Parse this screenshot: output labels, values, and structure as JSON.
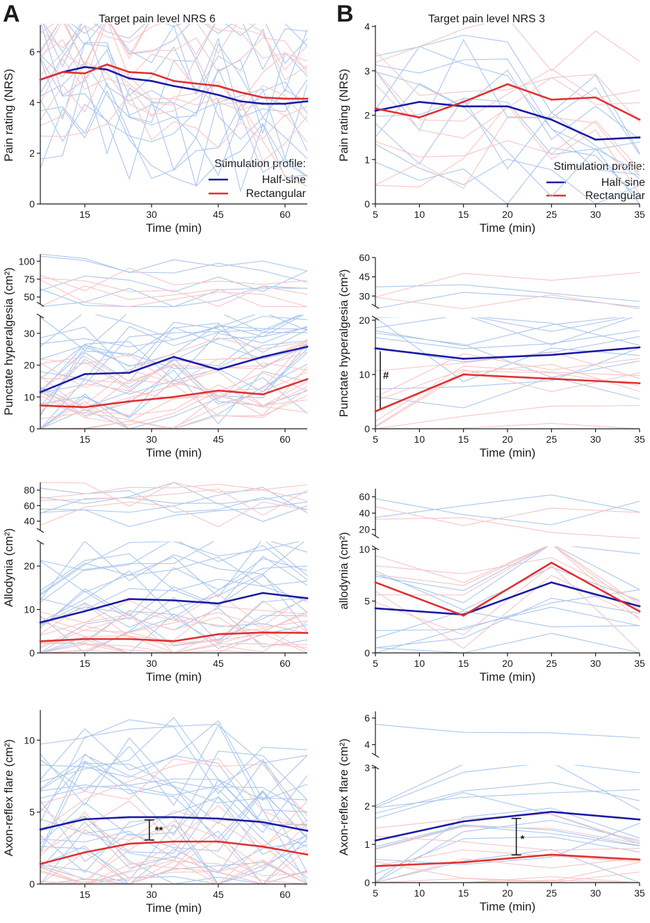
{
  "colors": {
    "half_sine": "#1a1aa6",
    "rectangular": "#e03030",
    "half_sine_light": "#a9c6ec",
    "rectangular_light": "#f7c4c4",
    "axis": "#1a1a1a"
  },
  "panel_labels": {
    "A": "A",
    "B": "B"
  },
  "column_titles": {
    "A": "Target pain level NRS 6",
    "B": "Target pain level NRS 3"
  },
  "legend": {
    "title": "Stimulation profile:",
    "half_sine": "Half-sine",
    "rectangular": "Rectangular"
  },
  "chart_data": [
    {
      "id": "A1",
      "type": "line",
      "column": "A",
      "ylabel": "Pain rating (NRS)",
      "xlabel": "Time (min)",
      "xlim": [
        5,
        65
      ],
      "ylim": [
        0,
        7
      ],
      "xticks": [
        15,
        30,
        45,
        60
      ],
      "yticks": [
        0,
        2,
        4,
        6
      ],
      "x": [
        5,
        10,
        15,
        20,
        25,
        30,
        35,
        40,
        45,
        50,
        55,
        60,
        65
      ],
      "series": [
        {
          "name": "Half-sine",
          "values": [
            4.9,
            5.2,
            5.4,
            5.3,
            4.95,
            4.85,
            4.65,
            4.5,
            4.3,
            4.05,
            3.95,
            3.95,
            4.05
          ]
        },
        {
          "name": "Rectangular",
          "values": [
            4.9,
            5.2,
            5.15,
            5.5,
            5.2,
            5.15,
            4.85,
            4.75,
            4.65,
            4.4,
            4.2,
            4.15,
            4.15
          ]
        }
      ]
    },
    {
      "id": "B1",
      "type": "line",
      "column": "B",
      "ylabel": "Pain rating (NRS)",
      "xlabel": "Time (min)",
      "xlim": [
        5,
        35
      ],
      "ylim": [
        0,
        4
      ],
      "xticks": [
        5,
        10,
        15,
        20,
        25,
        30,
        35
      ],
      "yticks": [
        0,
        1,
        2,
        3,
        4
      ],
      "x": [
        5,
        10,
        15,
        20,
        25,
        30,
        35
      ],
      "series": [
        {
          "name": "Half-sine",
          "values": [
            2.1,
            2.3,
            2.2,
            2.2,
            1.9,
            1.45,
            1.5
          ]
        },
        {
          "name": "Rectangular",
          "values": [
            2.15,
            1.95,
            2.3,
            2.7,
            2.35,
            2.4,
            1.9
          ]
        }
      ]
    },
    {
      "id": "A2",
      "type": "line",
      "column": "A",
      "ylabel": "Punctate hyperalgesia (cm²)",
      "xlabel": "Time (min)",
      "xlim": [
        5,
        65
      ],
      "ylim": [
        0,
        35
      ],
      "ylim_upper": [
        40,
        110
      ],
      "xticks": [
        15,
        30,
        45,
        60
      ],
      "yticks": [
        0,
        10,
        20,
        30
      ],
      "yticks_upper": [
        50,
        75,
        100
      ],
      "x": [
        5,
        15,
        25,
        35,
        45,
        55,
        65
      ],
      "series": [
        {
          "name": "Half-sine",
          "values": [
            11.5,
            17.2,
            17.6,
            22.6,
            18.6,
            22.6,
            25.8
          ]
        },
        {
          "name": "Rectangular",
          "values": [
            7.3,
            6.8,
            8.6,
            10.0,
            12.0,
            10.8,
            15.6
          ]
        }
      ]
    },
    {
      "id": "B2",
      "type": "line",
      "column": "B",
      "ylabel": "Punctate hyperalgesia (cm²)",
      "xlabel": "Time (min)",
      "xlim": [
        5,
        35
      ],
      "ylim": [
        0,
        20
      ],
      "ylim_upper": [
        22,
        60
      ],
      "xticks": [
        5,
        10,
        15,
        20,
        25,
        30,
        35
      ],
      "yticks": [
        0,
        10,
        20
      ],
      "yticks_upper": [
        30,
        45,
        60
      ],
      "x": [
        5,
        15,
        25,
        35
      ],
      "annotation": "#",
      "series": [
        {
          "name": "Half-sine",
          "values": [
            14.8,
            12.9,
            13.6,
            15.0
          ]
        },
        {
          "name": "Rectangular",
          "values": [
            3.2,
            10.0,
            9.2,
            8.4
          ]
        }
      ]
    },
    {
      "id": "A3",
      "type": "line",
      "column": "A",
      "ylabel": "Allodynia (cm²)",
      "xlabel": "Time (min)",
      "xlim": [
        5,
        65
      ],
      "ylim": [
        0,
        25
      ],
      "ylim_upper": [
        28,
        90
      ],
      "xticks": [
        15,
        30,
        45,
        60
      ],
      "yticks": [
        0,
        10,
        20
      ],
      "yticks_upper": [
        40,
        60,
        80
      ],
      "x": [
        5,
        15,
        25,
        35,
        45,
        55,
        65
      ],
      "series": [
        {
          "name": "Half-sine",
          "values": [
            7.0,
            9.6,
            12.4,
            12.1,
            11.4,
            13.8,
            12.6
          ]
        },
        {
          "name": "Rectangular",
          "values": [
            2.7,
            3.2,
            3.2,
            2.7,
            4.3,
            4.7,
            4.6
          ]
        }
      ]
    },
    {
      "id": "B3",
      "type": "line",
      "column": "B",
      "ylabel": "allodynia (cm²)",
      "xlabel": "Time (min)",
      "xlim": [
        5,
        35
      ],
      "ylim": [
        0,
        10
      ],
      "ylim_upper": [
        12,
        70
      ],
      "xticks": [
        5,
        10,
        15,
        20,
        25,
        30,
        35
      ],
      "yticks": [
        0,
        5,
        10
      ],
      "yticks_upper": [
        20,
        40,
        60
      ],
      "x": [
        5,
        15,
        25,
        35
      ],
      "series": [
        {
          "name": "Half-sine",
          "values": [
            4.3,
            3.7,
            6.8,
            4.5
          ]
        },
        {
          "name": "Rectangular",
          "values": [
            6.8,
            3.6,
            8.7,
            4.0
          ]
        }
      ]
    },
    {
      "id": "A4",
      "type": "line",
      "column": "A",
      "ylabel": "Axon-reflex flare (cm²)",
      "xlabel": "Time (min)",
      "xlim": [
        5,
        65
      ],
      "ylim": [
        0,
        12
      ],
      "xticks": [
        15,
        30,
        45,
        60
      ],
      "yticks": [
        0,
        5,
        10
      ],
      "x": [
        5,
        15,
        25,
        35,
        45,
        55,
        65
      ],
      "annotation": "**",
      "series": [
        {
          "name": "Half-sine",
          "values": [
            3.8,
            4.5,
            4.65,
            4.65,
            4.55,
            4.3,
            3.7
          ]
        },
        {
          "name": "Rectangular",
          "values": [
            1.4,
            2.2,
            2.8,
            2.95,
            2.95,
            2.6,
            2.05
          ]
        }
      ]
    },
    {
      "id": "B4",
      "type": "line",
      "column": "B",
      "ylabel": "Axon-reflex flare (cm²)",
      "xlabel": "Time (min)",
      "xlim": [
        5,
        35
      ],
      "ylim": [
        0,
        3
      ],
      "ylim_upper": [
        3.2,
        6.5
      ],
      "xticks": [
        5,
        10,
        15,
        20,
        25,
        30,
        35
      ],
      "yticks": [
        0,
        1,
        2,
        3
      ],
      "yticks_upper": [
        4,
        6
      ],
      "x": [
        5,
        15,
        25,
        35
      ],
      "annotation": "*",
      "series": [
        {
          "name": "Half-sine",
          "values": [
            1.1,
            1.6,
            1.85,
            1.65
          ]
        },
        {
          "name": "Rectangular",
          "values": [
            0.43,
            0.53,
            0.73,
            0.6
          ]
        }
      ]
    }
  ]
}
